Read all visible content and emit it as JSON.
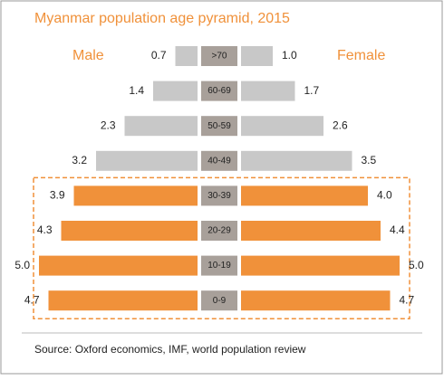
{
  "chart_data": {
    "type": "pyramid",
    "title": "Myanmar population age pyramid, 2015",
    "source": "Source: Oxford economics, IMF, world population review",
    "categories": [
      ">70",
      "60-69",
      "50-59",
      "40-49",
      "30-39",
      "20-29",
      "10-19",
      "0-9"
    ],
    "series": [
      {
        "name": "Male",
        "color": "#c8c8c8",
        "values": [
          0.7,
          1.4,
          2.3,
          3.2,
          3.9,
          4.3,
          5.0,
          4.7
        ],
        "value_labels": [
          "0.7",
          "1.4",
          "2.3",
          "3.2",
          "3.9",
          "4.3",
          "5.0",
          "4.7"
        ]
      },
      {
        "name": "Female",
        "color": "#c8c8c8",
        "values": [
          1.0,
          1.7,
          2.6,
          3.5,
          4.0,
          4.4,
          5.0,
          4.7
        ],
        "value_labels": [
          "1.0",
          "1.7",
          "2.6",
          "3.5",
          "4.0",
          "4.4",
          "5.0",
          "4.7"
        ]
      }
    ],
    "highlight_rows": [
      4,
      5,
      6,
      7
    ],
    "highlight_color": "#f0913a",
    "label_box_color": "#a8a09a",
    "title_color": "#f0913a"
  }
}
